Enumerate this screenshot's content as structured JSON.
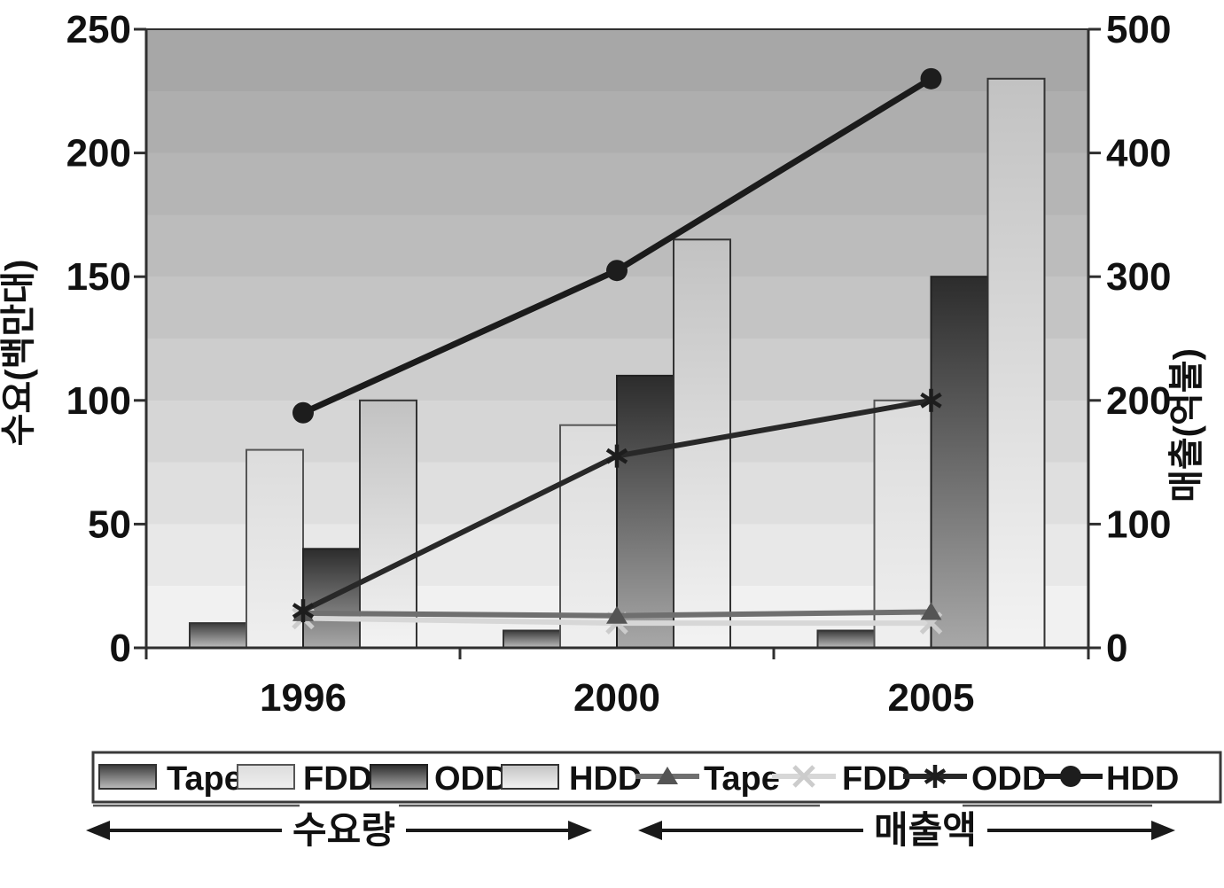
{
  "chart_data": {
    "type": "combo-bar-line-dual-axis",
    "categories": [
      "1996",
      "2000",
      "2005"
    ],
    "bar_series": [
      {
        "name": "Tape",
        "axis": "left",
        "values": [
          10,
          7,
          7
        ]
      },
      {
        "name": "FDD",
        "axis": "left",
        "values": [
          80,
          90,
          100
        ]
      },
      {
        "name": "ODD",
        "axis": "left",
        "values": [
          40,
          110,
          150
        ]
      },
      {
        "name": "HDD",
        "axis": "left",
        "values": [
          100,
          165,
          230
        ]
      }
    ],
    "line_series": [
      {
        "name": "Tape",
        "axis": "right",
        "marker": "triangle",
        "values": [
          28,
          26,
          29
        ]
      },
      {
        "name": "FDD",
        "axis": "right",
        "marker": "x",
        "values": [
          24,
          20,
          20
        ]
      },
      {
        "name": "ODD",
        "axis": "right",
        "marker": "asterisk",
        "values": [
          30,
          155,
          200
        ]
      },
      {
        "name": "HDD",
        "axis": "right",
        "marker": "circle",
        "values": [
          190,
          305,
          460
        ]
      }
    ],
    "left_axis": {
      "title": "수요(백만대)",
      "ticks": [
        0,
        50,
        100,
        150,
        200,
        250
      ],
      "range": [
        0,
        250
      ]
    },
    "right_axis": {
      "title": "매출(억불)",
      "ticks": [
        0,
        100,
        200,
        300,
        400,
        500
      ],
      "range": [
        0,
        500
      ]
    },
    "x_axis": {
      "tick_labels": [
        "1996",
        "2000",
        "2005"
      ]
    },
    "legend": {
      "bar_items": [
        "Tape",
        "FDD",
        "ODD",
        "HDD"
      ],
      "line_items": [
        "Tape",
        "FDD",
        "ODD",
        "HDD"
      ],
      "position": "bottom-box"
    },
    "annotations": [
      {
        "label": "수요량",
        "type": "double-arrow",
        "side": "left"
      },
      {
        "label": "매출액",
        "type": "double-arrow",
        "side": "right"
      }
    ],
    "grid": "banded-background",
    "title": "",
    "subtitle": ""
  },
  "colors": {
    "bg_bands": [
      "#a7a7a7",
      "#aeaeae",
      "#b5b5b5",
      "#bcbcbc",
      "#c4c4c4",
      "#cdcdcd",
      "#d6d6d6",
      "#dfdfdf",
      "#e8e8e8",
      "#f1f1f1"
    ],
    "bars": {
      "Tape": {
        "top": "#3a3a3a",
        "bottom": "#bdbdbd",
        "stroke": "#333333"
      },
      "FDD": {
        "top": "#dcdcdc",
        "bottom": "#efefef",
        "stroke": "#555555"
      },
      "ODD": {
        "top": "#2c2c2c",
        "bottom": "#a8a8a8",
        "stroke": "#222222"
      },
      "HDD": {
        "top": "#c2c2c2",
        "bottom": "#f3f3f3",
        "stroke": "#333333"
      }
    },
    "lines": {
      "Tape": {
        "stroke": "#6f6f6f",
        "marker": "#545454"
      },
      "FDD": {
        "stroke": "#d7d7d7",
        "marker": "#cccccc"
      },
      "ODD": {
        "stroke": "#282828",
        "marker": "#1d1d1d"
      },
      "HDD": {
        "stroke": "#1b1b1b",
        "marker": "#1d1d1d"
      }
    },
    "axis": "#2f2f2f",
    "text": "#111111",
    "legend_border": "#3a3a3a",
    "annotation": "#1a1a1a"
  }
}
